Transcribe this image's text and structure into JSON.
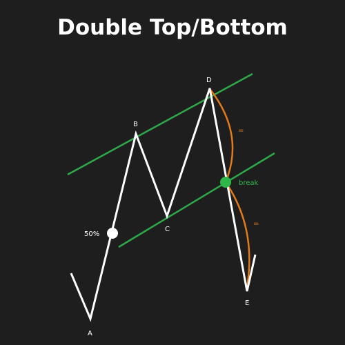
{
  "title": "Double Top/Bottom",
  "points": {
    "A": "A",
    "B": "B",
    "C": "C",
    "D": "D",
    "E": "E"
  },
  "markers": {
    "fifty_percent": "50%",
    "break": "break",
    "equal_top": "=",
    "equal_bottom": "="
  },
  "colors": {
    "background": "#1e1e1e",
    "price_line": "#ffffff",
    "channel": "#2fa84a",
    "break_dot": "#2fb84a",
    "arc": "#e07a1c",
    "fifty_dot": "#ffffff"
  }
}
